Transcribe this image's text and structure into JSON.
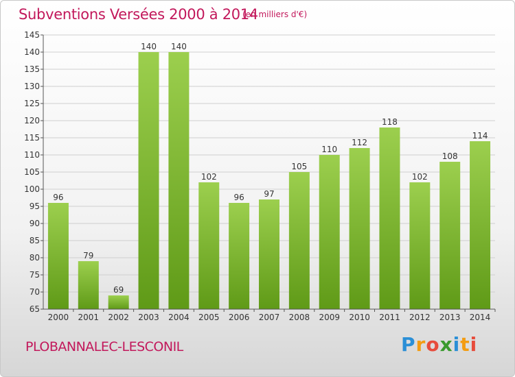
{
  "header": {
    "title": "Subventions Versées 2000 à 2014",
    "subtitle": "(en milliers d'€)"
  },
  "footer": {
    "place": "PLOBANNALEC-LESCONIL",
    "logo": "Proxiti"
  },
  "colors": {
    "title": "#c2185b",
    "bar_top": "#9ccf4e",
    "bar_bottom": "#5f9a17",
    "grid": "#cfcfcf"
  },
  "chart_data": {
    "type": "bar",
    "title": "Subventions Versées 2000 à 2014",
    "subtitle": "(en milliers d'€)",
    "xlabel": "",
    "ylabel": "",
    "categories": [
      "2000",
      "2001",
      "2002",
      "2003",
      "2004",
      "2005",
      "2006",
      "2007",
      "2008",
      "2009",
      "2010",
      "2011",
      "2012",
      "2013",
      "2014"
    ],
    "values": [
      96,
      79,
      69,
      140,
      140,
      102,
      96,
      97,
      105,
      110,
      112,
      118,
      102,
      108,
      114
    ],
    "ylim": [
      65,
      145
    ],
    "yticks": [
      65,
      70,
      75,
      80,
      85,
      90,
      95,
      100,
      105,
      110,
      115,
      120,
      125,
      130,
      135,
      140,
      145
    ],
    "grid": true,
    "legend": "none"
  }
}
